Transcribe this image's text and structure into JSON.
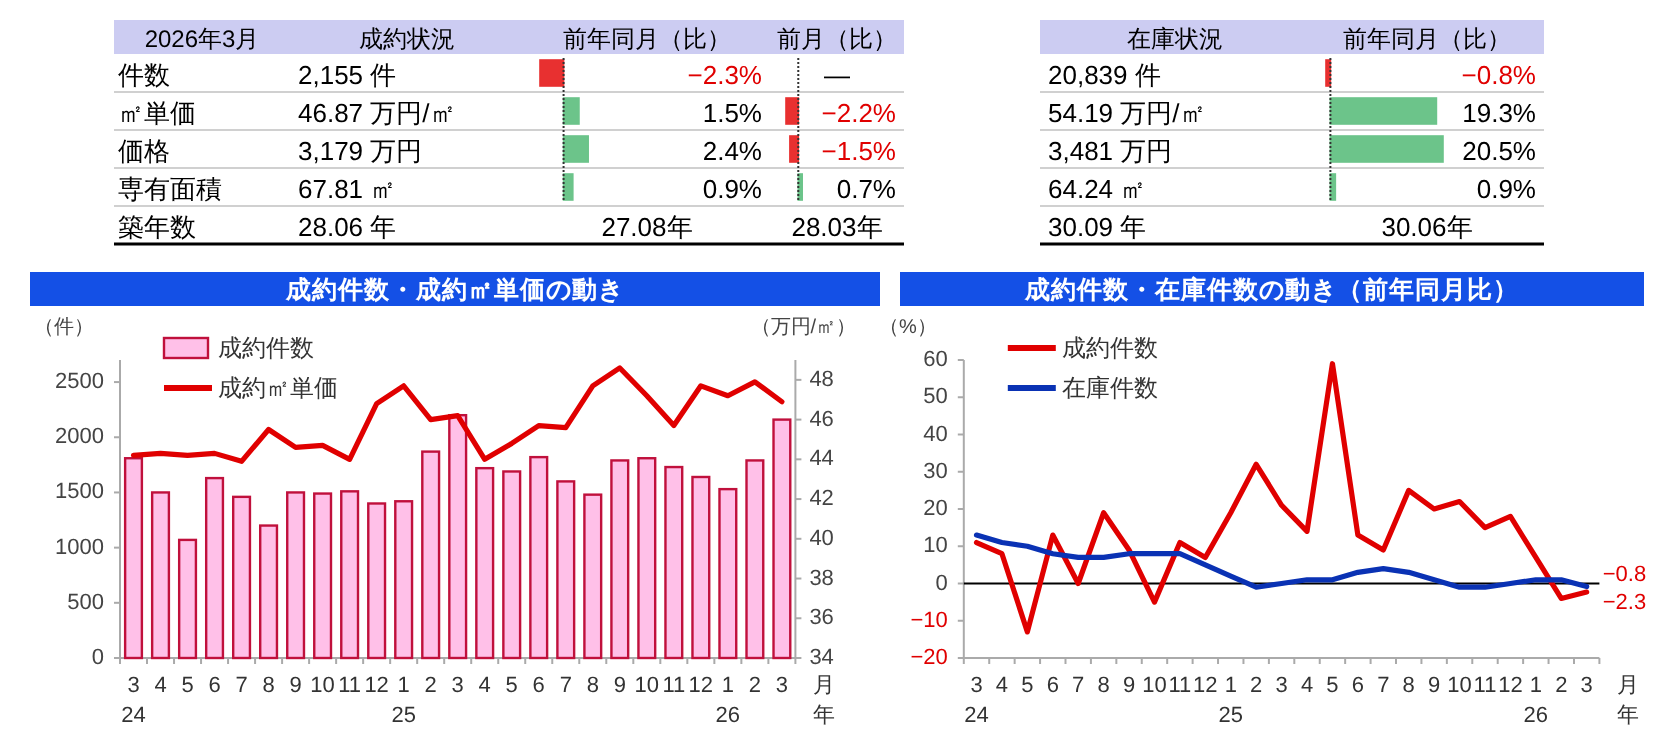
{
  "chart_data": [
    {
      "type": "bar",
      "orientation": "horizontal",
      "title": "2026年3月",
      "categories": [
        "件数",
        "㎡単価",
        "価格",
        "専有面積",
        "築年数"
      ],
      "ref_lines": [
        {
          "axis": "x",
          "value": 0,
          "line_style": "dotted",
          "color": "#333333"
        }
      ],
      "series": [
        {
          "name": "成約状況",
          "type": "other",
          "values": [
            null,
            null,
            null,
            null,
            null
          ],
          "value_labels": [
            "2,155 件",
            "46.87 万円/㎡",
            "3,179 万円",
            "67.81 ㎡",
            "28.06 年"
          ]
        },
        {
          "name": "前年同月（比）",
          "values": [
            -2.3,
            1.5,
            2.4,
            0.9,
            null
          ],
          "colors": [
            "#e83030",
            "#6cc48a",
            "#6cc48a",
            "#6cc48a",
            null
          ],
          "value_labels": [
            "−2.3%",
            "1.5%",
            "2.4%",
            "0.9%",
            "27.08年"
          ]
        }
      ]
    },
    {
      "type": "bar",
      "orientation": "horizontal",
      "categories": [
        null,
        null,
        null,
        null,
        null
      ],
      "ref_lines": [
        {
          "axis": "x",
          "value": 0,
          "line_style": "dotted",
          "color": "#333333"
        }
      ],
      "series": [
        {
          "name": "前月（比）",
          "values": [
            null,
            -2.2,
            -1.5,
            0.7,
            null
          ],
          "colors": [
            null,
            "#e83030",
            "#e83030",
            "#6cc48a",
            null
          ],
          "value_labels": [
            "—",
            "−2.2%",
            "−1.5%",
            "0.7%",
            "28.03年"
          ]
        }
      ]
    },
    {
      "type": "bar",
      "orientation": "horizontal",
      "categories": [
        null,
        null,
        null,
        null,
        null
      ],
      "ref_lines": [
        {
          "axis": "x",
          "value": 0,
          "line_style": "dotted",
          "color": "#333333"
        }
      ],
      "series": [
        {
          "name": "在庫状況",
          "type": "other",
          "values": [
            null,
            null,
            null,
            null,
            null
          ],
          "value_labels": [
            "20,839 件",
            "54.19 万円/㎡",
            "3,481 万円",
            "64.24 ㎡",
            "30.09 年"
          ]
        },
        {
          "name": "前年同月（比）",
          "values": [
            -0.8,
            19.3,
            20.5,
            0.9,
            null
          ],
          "colors": [
            "#e83030",
            "#6cc48a",
            "#6cc48a",
            "#6cc48a",
            null
          ],
          "value_labels": [
            "−0.8%",
            "19.3%",
            "20.5%",
            "0.9%",
            "30.06年"
          ]
        }
      ]
    },
    {
      "type": "bar",
      "title": "成約件数・成約㎡単価の動き",
      "categories": [
        "3\n24",
        "4",
        "5",
        "6",
        "7",
        "8",
        "9",
        "10",
        "11",
        "12",
        "1\n25",
        "2",
        "3",
        "4",
        "5",
        "6",
        "7",
        "8",
        "9",
        "10",
        "11",
        "12",
        "1\n26",
        "2",
        "3"
      ],
      "xlabel": "月",
      "annotations": [
        "年"
      ],
      "ylabel": "（件）",
      "y2label": "（万円/㎡）",
      "ylim": [
        0,
        2700
      ],
      "yticks": [
        0,
        500,
        1000,
        1500,
        2000,
        2500
      ],
      "y2lim": [
        34,
        49
      ],
      "y2ticks": [
        34,
        36,
        38,
        40,
        42,
        44,
        46,
        48
      ],
      "legend": "top left",
      "series": [
        {
          "name": "成約件数",
          "type": "bar",
          "color": "#ffc0e8",
          "values": [
            1810,
            1500,
            1070,
            1630,
            1460,
            1200,
            1500,
            1490,
            1510,
            1400,
            1420,
            1870,
            2200,
            1720,
            1690,
            1820,
            1600,
            1480,
            1790,
            1810,
            1730,
            1640,
            1530,
            1790,
            2160
          ]
        },
        {
          "name": "成約㎡単価",
          "type": "line",
          "axis": "y2",
          "color": "#e00000",
          "values": [
            44.2,
            44.3,
            44.2,
            44.3,
            43.9,
            45.5,
            44.6,
            44.7,
            44.0,
            46.8,
            47.7,
            46.0,
            46.2,
            44.0,
            44.8,
            45.7,
            45.6,
            47.7,
            48.6,
            47.2,
            45.7,
            47.7,
            47.2,
            47.9,
            46.9
          ]
        }
      ]
    },
    {
      "type": "line",
      "title": "成約件数・在庫件数の動き（前年同月比）",
      "categories": [
        "3\n24",
        "4",
        "5",
        "6",
        "7",
        "8",
        "9",
        "10",
        "11",
        "12",
        "1\n25",
        "2",
        "3",
        "4",
        "5",
        "6",
        "7",
        "8",
        "9",
        "10",
        "11",
        "12",
        "1\n26",
        "2",
        "3"
      ],
      "xlabel": "月",
      "annotations": [
        "年"
      ],
      "ylabel": "（%）",
      "ylim": [
        -20,
        60
      ],
      "yticks": [
        -20,
        -10,
        0,
        10,
        20,
        30,
        40,
        50,
        60
      ],
      "legend": "top left",
      "series": [
        {
          "name": "成約件数",
          "color": "#e00000",
          "values": [
            11,
            8,
            -13,
            13,
            0,
            19,
            9,
            -5,
            11,
            7,
            19,
            32,
            21,
            14,
            59,
            13,
            9,
            25,
            20,
            22,
            15,
            18,
            7,
            -4,
            -2.3
          ],
          "value_labels": [
            null,
            null,
            null,
            null,
            null,
            null,
            null,
            null,
            null,
            null,
            null,
            null,
            null,
            null,
            null,
            null,
            null,
            null,
            null,
            null,
            null,
            null,
            null,
            null,
            "−2.3"
          ]
        },
        {
          "name": "在庫件数",
          "color": "#0a32b4",
          "values": [
            13,
            11,
            10,
            8,
            7,
            7,
            8,
            8,
            8,
            5,
            2,
            -1,
            0,
            1,
            1,
            3,
            4,
            3,
            1,
            -1,
            -1,
            0,
            1,
            1,
            -0.8
          ],
          "value_labels": [
            null,
            null,
            null,
            null,
            null,
            null,
            null,
            null,
            null,
            null,
            null,
            null,
            null,
            null,
            null,
            null,
            null,
            null,
            null,
            null,
            null,
            null,
            null,
            null,
            "−0.8"
          ]
        }
      ]
    }
  ]
}
